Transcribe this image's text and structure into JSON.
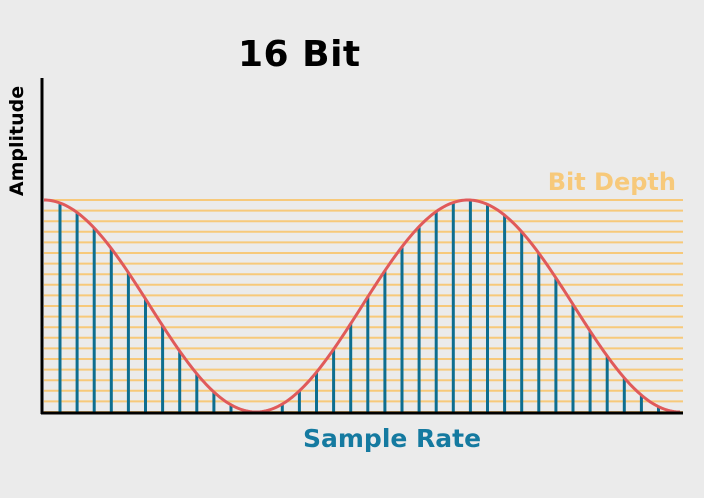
{
  "title": "16 Bit",
  "labels": {
    "bit_depth": "Bit Depth",
    "sample_rate": "Sample Rate",
    "amplitude": "Amplitude"
  },
  "colors": {
    "background": "#ebebeb",
    "wave": "#e05a5a",
    "quantization_lines": "#f7c97a",
    "bit_depth_label": "#f7c97a",
    "samples": "#0e6e8f",
    "sample_rate_label": "#157aa0",
    "axes": "#000000"
  },
  "diagram": {
    "quantization_levels": 21,
    "sample_count": 37,
    "wave_cycles": 1.5
  }
}
